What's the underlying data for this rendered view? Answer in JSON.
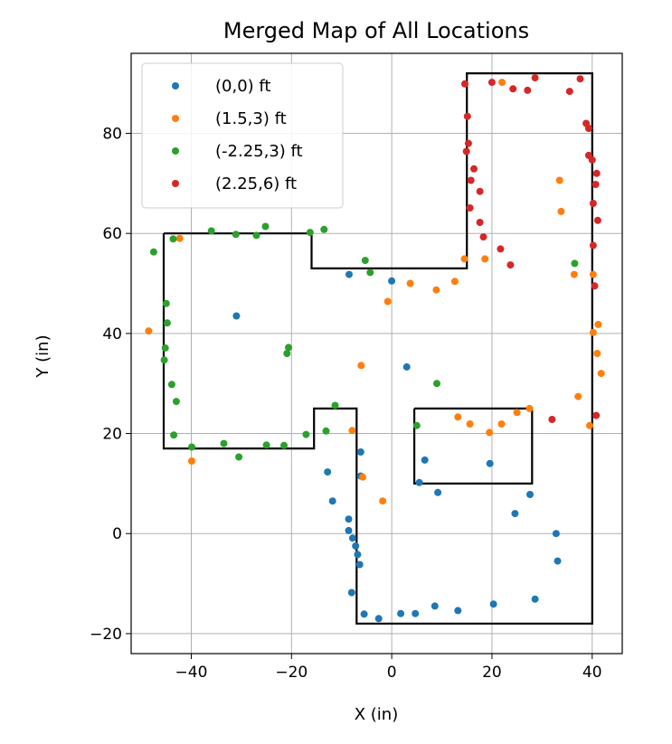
{
  "chart_data": {
    "type": "scatter",
    "title": "Merged Map of All Locations",
    "xlabel": "X (in)",
    "ylabel": "Y (in)",
    "xlim": [
      -52,
      46
    ],
    "ylim": [
      -24,
      96
    ],
    "xticks": [
      -40,
      -20,
      0,
      20,
      40
    ],
    "yticks": [
      -20,
      0,
      20,
      40,
      60,
      80
    ],
    "xtick_labels": [
      "−40",
      "−20",
      "0",
      "20",
      "40"
    ],
    "ytick_labels": [
      "−20",
      "0",
      "20",
      "40",
      "60",
      "80"
    ],
    "grid": true,
    "legend_position": "top-left",
    "outline": [
      [
        -45.5,
        60
      ],
      [
        -16,
        60
      ],
      [
        -16,
        53
      ],
      [
        15,
        53
      ],
      [
        15,
        92
      ],
      [
        40,
        92
      ],
      [
        40,
        -18
      ],
      [
        -7,
        -18
      ],
      [
        -7,
        25
      ],
      [
        -15.5,
        25
      ],
      [
        -15.5,
        17
      ],
      [
        -45.5,
        17
      ],
      [
        -45.5,
        60
      ]
    ],
    "inner_outline": [
      [
        4.5,
        25
      ],
      [
        28,
        25
      ],
      [
        28,
        10
      ],
      [
        4.5,
        10
      ],
      [
        4.5,
        25
      ]
    ],
    "series": [
      {
        "name": "(0,0) ft",
        "color": "#1f77b4",
        "points": [
          [
            -31,
            43.5
          ],
          [
            -8.5,
            51.8
          ],
          [
            0,
            50.5
          ],
          [
            3,
            33.3
          ],
          [
            -12.8,
            12.3
          ],
          [
            -11.8,
            6.5
          ],
          [
            -6.2,
            16.3
          ],
          [
            -6.2,
            11.5
          ],
          [
            -8.6,
            2.9
          ],
          [
            -8.6,
            0.6
          ],
          [
            -7.8,
            -0.9
          ],
          [
            -7.2,
            -2.5
          ],
          [
            -6.8,
            -4.2
          ],
          [
            -6.4,
            -6.2
          ],
          [
            -8,
            -11.8
          ],
          [
            -5.5,
            -16.1
          ],
          [
            -2.6,
            -17
          ],
          [
            1.8,
            -16
          ],
          [
            4.7,
            -16
          ],
          [
            8.6,
            -14.5
          ],
          [
            13.2,
            -15.4
          ],
          [
            20.3,
            -14.1
          ],
          [
            28.6,
            -13.1
          ],
          [
            33.1,
            -5.5
          ],
          [
            32.8,
            0
          ],
          [
            27.6,
            7.8
          ],
          [
            24.6,
            4
          ],
          [
            19.6,
            14
          ],
          [
            9.2,
            8.2
          ],
          [
            6.6,
            14.7
          ],
          [
            5.5,
            10.2
          ]
        ]
      },
      {
        "name": "(1.5,3) ft",
        "color": "#ff7f0e",
        "points": [
          [
            -48.5,
            40.5
          ],
          [
            -42.3,
            59
          ],
          [
            -39.9,
            14.5
          ],
          [
            -6.1,
            33.6
          ],
          [
            -5.8,
            11.3
          ],
          [
            -1.8,
            6.5
          ],
          [
            -0.8,
            46.4
          ],
          [
            3.7,
            50
          ],
          [
            8.9,
            48.7
          ],
          [
            12.6,
            50.4
          ],
          [
            14.5,
            54.9
          ],
          [
            18.6,
            54.9
          ],
          [
            22,
            90.2
          ],
          [
            33.5,
            70.6
          ],
          [
            33.8,
            64.4
          ],
          [
            36.4,
            51.8
          ],
          [
            40.2,
            51.8
          ],
          [
            40.2,
            40.2
          ],
          [
            41.2,
            41.8
          ],
          [
            41,
            36
          ],
          [
            41.8,
            32
          ],
          [
            37.2,
            27.4
          ],
          [
            39.5,
            21.6
          ],
          [
            27.5,
            25
          ],
          [
            25,
            24.2
          ],
          [
            21.9,
            21.9
          ],
          [
            19.5,
            20.2
          ],
          [
            15.6,
            21.9
          ],
          [
            13.2,
            23.3
          ],
          [
            -7.9,
            20.6
          ]
        ]
      },
      {
        "name": "(-2.25,3) ft",
        "color": "#2ca02c",
        "points": [
          [
            -47.5,
            56.3
          ],
          [
            -43.6,
            58.9
          ],
          [
            -36,
            60.5
          ],
          [
            -31.1,
            59.8
          ],
          [
            -27,
            59.6
          ],
          [
            -25.2,
            61.4
          ],
          [
            -16.3,
            60.2
          ],
          [
            -13.5,
            60.8
          ],
          [
            -5.3,
            54.6
          ],
          [
            -4.3,
            52.2
          ],
          [
            -45,
            46
          ],
          [
            -44.8,
            42.1
          ],
          [
            -45.2,
            37.1
          ],
          [
            -45.4,
            34.7
          ],
          [
            -43.9,
            29.8
          ],
          [
            -43,
            26.4
          ],
          [
            -43.5,
            19.7
          ],
          [
            -39.9,
            17.3
          ],
          [
            -33.5,
            18
          ],
          [
            -30.5,
            15.3
          ],
          [
            -25,
            17.7
          ],
          [
            -21.5,
            17.6
          ],
          [
            -20.6,
            37.2
          ],
          [
            -20.9,
            36
          ],
          [
            -17.1,
            19.8
          ],
          [
            -13.1,
            20.5
          ],
          [
            -11.3,
            25.6
          ],
          [
            5,
            21.6
          ],
          [
            9,
            30
          ],
          [
            36.5,
            54
          ]
        ]
      },
      {
        "name": "(2.25,6) ft",
        "color": "#d62728",
        "points": [
          [
            14.6,
            89.9
          ],
          [
            20,
            90.2
          ],
          [
            24.2,
            88.9
          ],
          [
            27.1,
            88.6
          ],
          [
            28.6,
            91.1
          ],
          [
            35.5,
            88.4
          ],
          [
            37.6,
            90.9
          ],
          [
            15.1,
            83.4
          ],
          [
            15.3,
            78
          ],
          [
            14.9,
            76.4
          ],
          [
            16.4,
            72.9
          ],
          [
            15.8,
            70.6
          ],
          [
            17.6,
            68.4
          ],
          [
            15.6,
            65.1
          ],
          [
            17.6,
            62.2
          ],
          [
            18.3,
            59.3
          ],
          [
            21.7,
            56.9
          ],
          [
            23.7,
            53.7
          ],
          [
            38.8,
            82
          ],
          [
            39.3,
            81
          ],
          [
            39.3,
            75.6
          ],
          [
            40,
            74.7
          ],
          [
            40.9,
            72
          ],
          [
            40.7,
            69.8
          ],
          [
            40.2,
            66
          ],
          [
            41.1,
            62.6
          ],
          [
            40.2,
            57.6
          ],
          [
            40.5,
            49.5
          ],
          [
            40.8,
            23.6
          ],
          [
            32,
            22.8
          ]
        ]
      }
    ]
  }
}
